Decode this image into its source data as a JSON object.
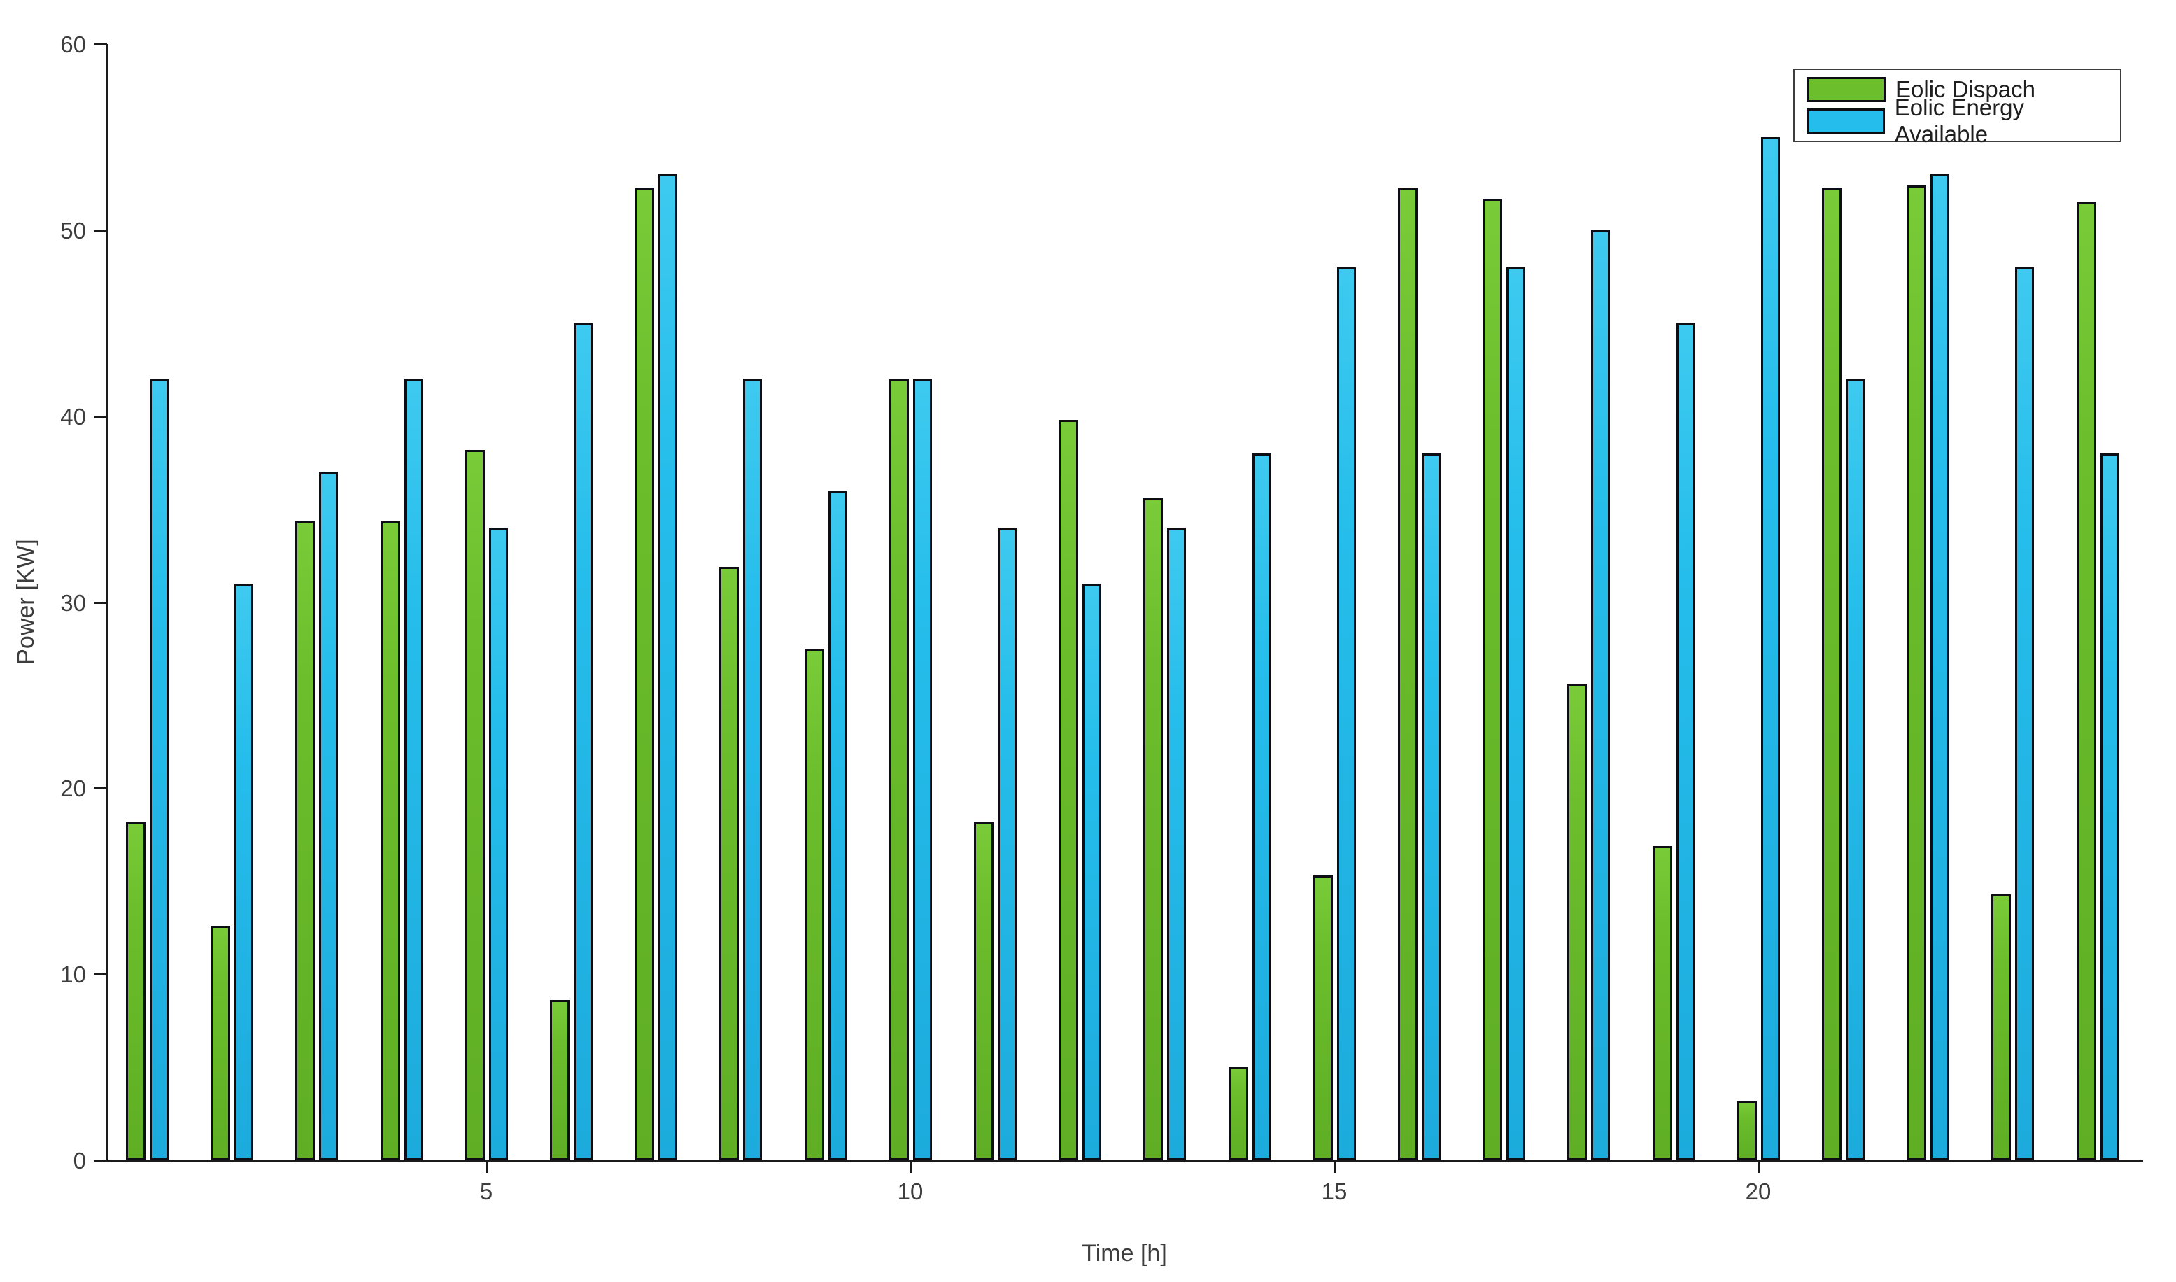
{
  "figure": {
    "background": "#ffffff"
  },
  "chart_data": {
    "type": "bar",
    "title": "",
    "xlabel": "Time [h]",
    "ylabel": "Power [KW]",
    "x": [
      1,
      2,
      3,
      4,
      5,
      6,
      7,
      8,
      9,
      10,
      11,
      12,
      13,
      14,
      15,
      16,
      17,
      18,
      19,
      20,
      21,
      22,
      23,
      24
    ],
    "series": [
      {
        "name": "Eolic Dispach",
        "color": "#6cbe2c",
        "values": [
          18.2,
          12.6,
          34.4,
          34.4,
          38.2,
          8.6,
          52.3,
          31.9,
          27.5,
          42.0,
          18.2,
          39.8,
          35.6,
          5.0,
          15.3,
          52.3,
          51.7,
          25.6,
          16.9,
          3.2,
          52.3,
          52.4,
          14.3,
          51.5
        ]
      },
      {
        "name": "Eolic Energy Available",
        "color": "#25bdeb",
        "values": [
          42,
          31,
          37,
          42,
          34,
          45,
          53,
          42,
          36,
          42,
          34,
          31,
          34,
          38,
          48,
          38,
          48,
          50,
          45,
          55,
          42,
          53,
          48,
          38
        ]
      }
    ],
    "ylim": [
      0,
      60
    ],
    "yticks": [
      "0",
      "10",
      "20",
      "30",
      "40",
      "50",
      "60"
    ],
    "xticks": [
      "5",
      "10",
      "15",
      "20"
    ],
    "xtick_positions": [
      5,
      10,
      15,
      20
    ],
    "legend_position": "top-right",
    "grid": false,
    "bar_edge_color": "#0d0d14",
    "axis_color": "#1a1a1a",
    "text_color": "#3d3d3d"
  }
}
